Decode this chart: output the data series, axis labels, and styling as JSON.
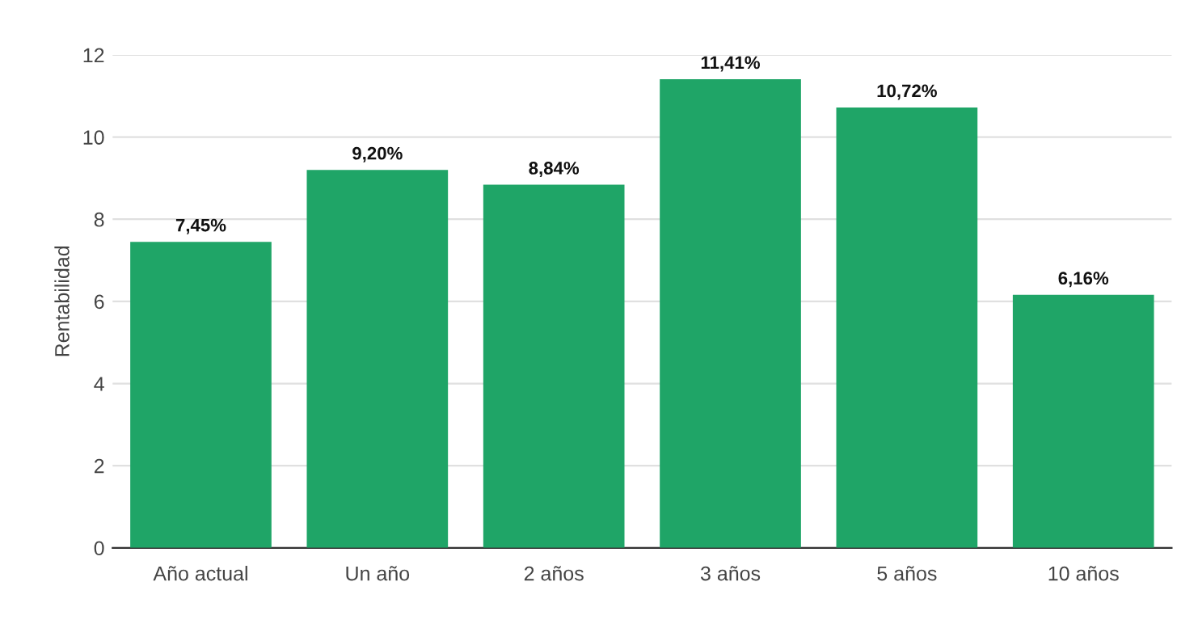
{
  "chart_data": {
    "type": "bar",
    "ylabel": "Rentabilidad",
    "categories": [
      "Año actual",
      "Un año",
      "2 años",
      "3 años",
      "5 años",
      "10 años"
    ],
    "values": [
      7.45,
      9.2,
      8.84,
      11.41,
      10.72,
      6.16
    ],
    "value_labels": [
      "7,45%",
      "9,20%",
      "8,84%",
      "11,41%",
      "10,72%",
      "6,16%"
    ],
    "color": "#1fa567",
    "ylim": [
      0,
      12
    ],
    "yticks": [
      0,
      2,
      4,
      6,
      8,
      10,
      12
    ],
    "grid": "y"
  }
}
